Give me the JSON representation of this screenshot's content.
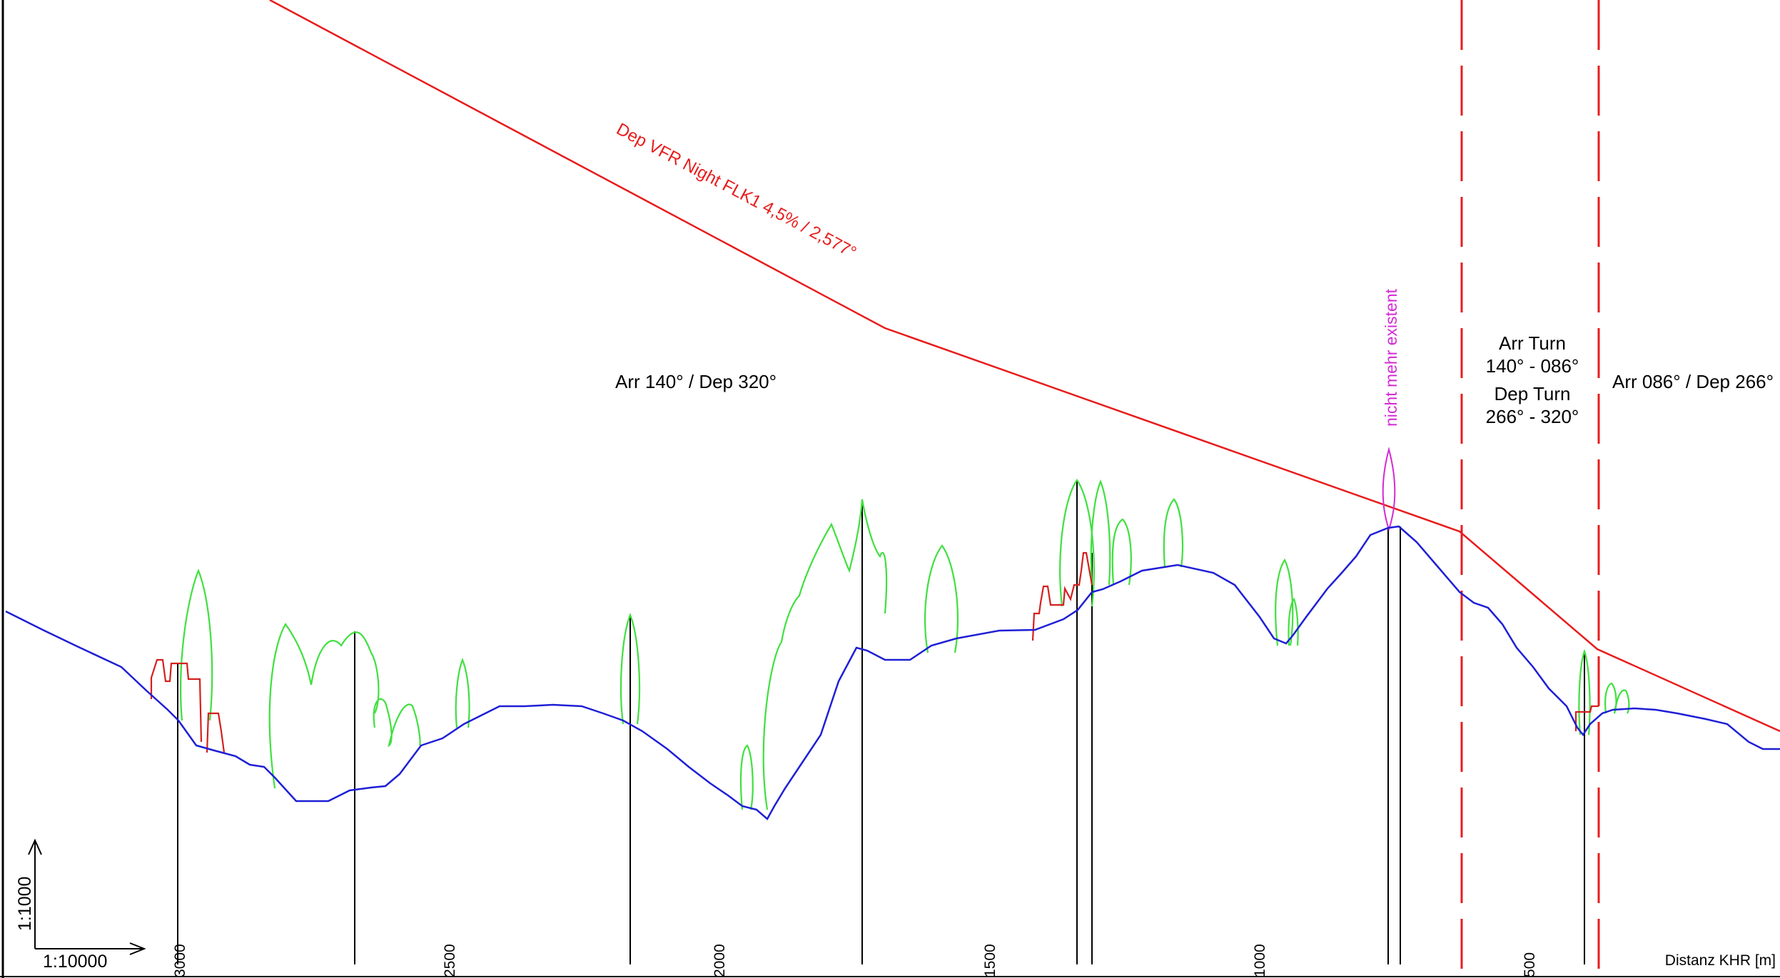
{
  "colors": {
    "terrain": "#1f1fd6",
    "surface": "#e81c1c",
    "vegetation": "#3fe03f",
    "buildings": "#d42020",
    "obstacle_removed": "#d42ad4",
    "poles": "#000000"
  },
  "departure_surface": {
    "label": "Dep VFR Night FLK1 4,5% / 2,577°"
  },
  "removed_obstacle": {
    "label": "nicht mehr existent"
  },
  "sectors": {
    "straight_west": "Arr 140° / Dep 320°",
    "turn_arr_line1": "Arr Turn",
    "turn_arr_line2": "140° - 086°",
    "turn_dep_line1": "Dep Turn",
    "turn_dep_line2": "266° - 320°",
    "straight_east": "Arr 086° / Dep 266°"
  },
  "scale": {
    "vertical": "1:1000",
    "horizontal": "1:10000"
  },
  "axis": {
    "title": "Distanz KHR [m]",
    "ticks": [
      "3000",
      "2500",
      "2000",
      "1500",
      "1000",
      "500"
    ]
  }
}
